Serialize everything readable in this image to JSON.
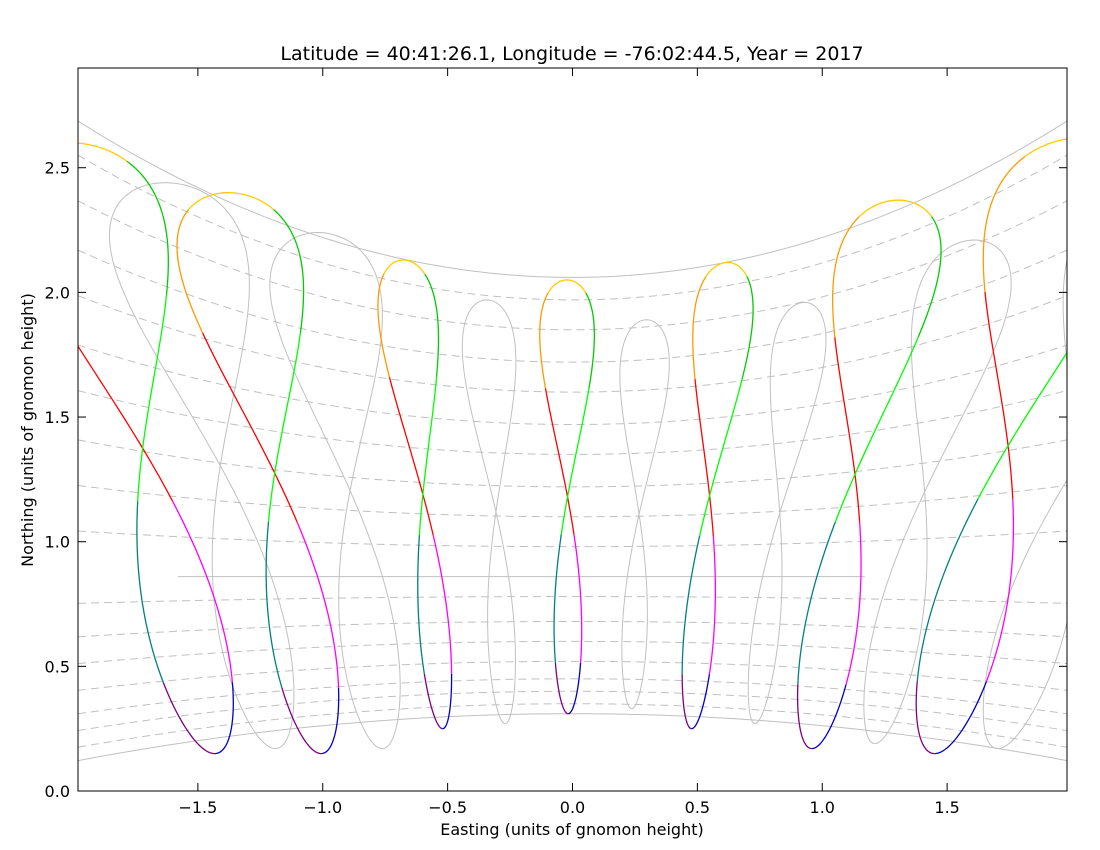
{
  "chart_data": {
    "type": "line",
    "title": "Latitude = 40:41:26.1, Longitude = -76:02:44.5, Year = 2017",
    "xlabel": "Easting (units of gnomon height)",
    "ylabel": "Northing (units of gnomon height)",
    "xlim": [
      -1.98,
      1.98
    ],
    "ylim": [
      0.0,
      2.9
    ],
    "x_ticks": [
      -1.5,
      -1.0,
      -0.5,
      0.0,
      0.5,
      1.0,
      1.5
    ],
    "x_tick_labels": [
      "−1.5",
      "−1.0",
      "−0.5",
      "0.0",
      "0.5",
      "1.0",
      "1.5"
    ],
    "y_ticks": [
      0.0,
      0.5,
      1.0,
      1.5,
      2.0,
      2.5
    ],
    "y_tick_labels": [
      "0.0",
      "0.5",
      "1.0",
      "1.5",
      "2.0",
      "2.5"
    ],
    "grid": false,
    "colors": {
      "frame": "#000000",
      "reference": "#c0c0c0",
      "month_palette": [
        "#0000cc",
        "#ff00ff",
        "#ff0000",
        "#ff9900",
        "#ffcc00",
        "#00cc00",
        "#00ff00",
        "#008080",
        "#800080"
      ]
    },
    "analemmas": [
      {
        "center": -1.68,
        "ytop": 2.6,
        "ybot": 0.15,
        "half_width": 0.33
      },
      {
        "center": -1.18,
        "ytop": 2.4,
        "ybot": 0.15,
        "half_width": 0.27
      },
      {
        "center": -0.6,
        "ytop": 2.13,
        "ybot": 0.25,
        "half_width": 0.13
      },
      {
        "center": -0.02,
        "ytop": 2.05,
        "ybot": 0.31,
        "half_width": 0.12
      },
      {
        "center": 0.55,
        "ytop": 2.12,
        "ybot": 0.25,
        "half_width": 0.13
      },
      {
        "center": 1.12,
        "ytop": 2.37,
        "ybot": 0.17,
        "half_width": 0.23
      },
      {
        "center": 1.7,
        "ytop": 2.62,
        "ybot": 0.15,
        "half_width": 0.33
      }
    ],
    "reference_curves": {
      "winter_solstice_apex": 2.06,
      "summer_solstice_apex": 0.31,
      "equinox_line": 0.86,
      "dashed_levels": [
        0.35,
        0.4,
        0.45,
        0.52,
        0.6,
        0.68,
        0.78,
        0.98,
        1.1,
        1.22,
        1.35,
        1.47,
        1.6,
        1.72,
        1.85,
        1.97
      ]
    }
  }
}
